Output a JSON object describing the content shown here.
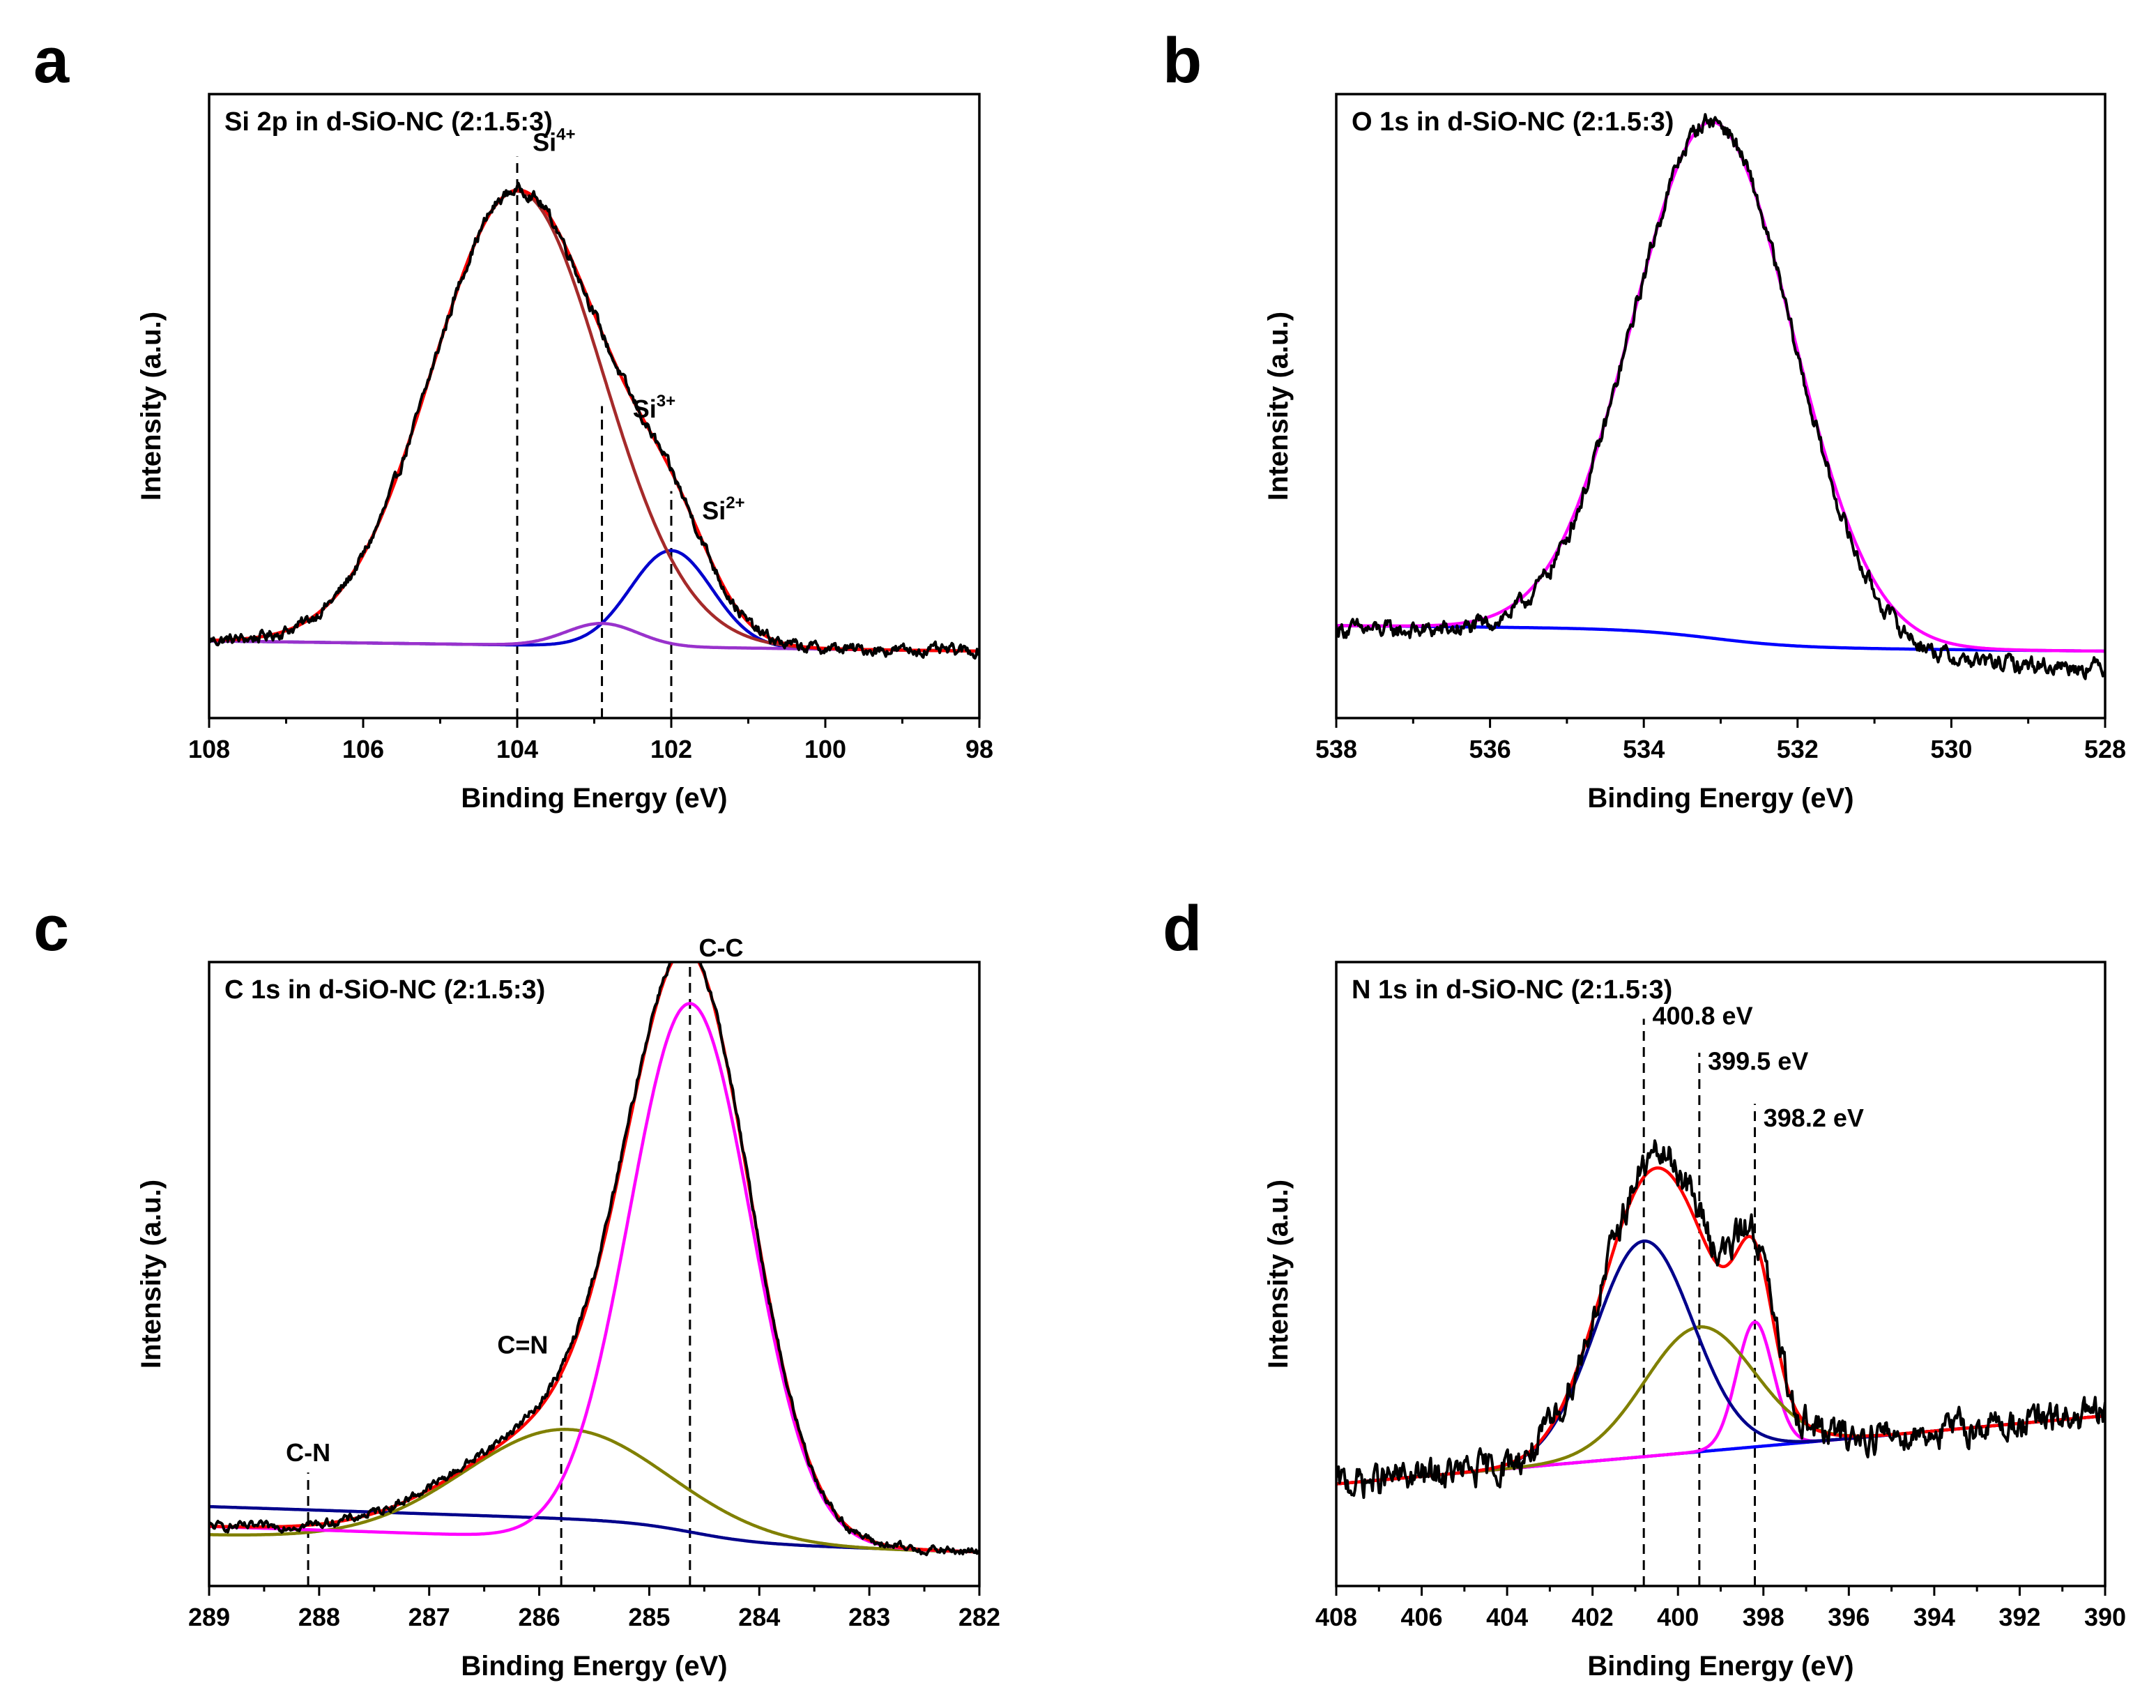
{
  "chart_data": [
    {
      "id": "a",
      "type": "line",
      "panel_label": "a",
      "title": "Si 2p in d-SiO-NC (2:1.5:3)",
      "xlabel": "Binding Energy (eV)",
      "ylabel": "Intensity (a.u.)",
      "xlim": [
        108,
        98
      ],
      "ylim": [
        0,
        1.1
      ],
      "xticks": [
        108,
        106,
        104,
        102,
        100,
        98
      ],
      "grid": false,
      "series": [
        {
          "name": "experimental",
          "color": "#000000",
          "noise": 0.008,
          "background": {
            "type": "linear",
            "y0": 0.136,
            "y1": 0.118,
            "shirley": 0
          },
          "peaks": [
            {
              "center": 104.0,
              "height": 0.8,
              "fwhm": 2.6
            },
            {
              "center": 102.0,
              "height": 0.15,
              "fwhm": 1.25
            },
            {
              "center": 102.9,
              "height": 0.03,
              "fwhm": 1.1
            }
          ]
        },
        {
          "name": "envelope fit",
          "color": "#ff0000",
          "background": {
            "type": "linear",
            "y0": 0.136,
            "y1": 0.118,
            "shirley": 0
          },
          "peaks": [
            {
              "center": 104.0,
              "height": 0.8,
              "fwhm": 2.6
            },
            {
              "center": 102.0,
              "height": 0.15,
              "fwhm": 1.25
            },
            {
              "center": 102.9,
              "height": 0.03,
              "fwhm": 1.1
            }
          ]
        },
        {
          "name": "Si4+ component",
          "color": "#a52a2a",
          "background": {
            "type": "linear",
            "y0": 0.136,
            "y1": 0.118,
            "shirley": 0
          },
          "peaks": [
            {
              "center": 104.0,
              "height": 0.8,
              "fwhm": 2.6
            }
          ]
        },
        {
          "name": "Si3+ component",
          "color": "#9932cc",
          "background": {
            "type": "linear",
            "y0": 0.136,
            "y1": 0.118,
            "shirley": 0
          },
          "peaks": [
            {
              "center": 102.9,
              "height": 0.04,
              "fwhm": 1.1
            }
          ]
        },
        {
          "name": "Si2+ component",
          "color": "#0000cd",
          "background": {
            "type": "linear",
            "y0": 0.136,
            "y1": 0.118,
            "shirley": 0
          },
          "peaks": [
            {
              "center": 102.0,
              "height": 0.17,
              "fwhm": 1.25
            }
          ]
        }
      ],
      "reference_lines": [
        {
          "x": 104.0,
          "y_top": 0.99
        },
        {
          "x": 102.9,
          "y_top": 0.55
        },
        {
          "x": 102.0,
          "y_top": 0.4
        }
      ],
      "annotations": [
        {
          "text": "Si",
          "sup": "4+",
          "x": 103.8,
          "y": 1.0
        },
        {
          "text": "Si",
          "sup": "3+",
          "x": 102.5,
          "y": 0.53
        },
        {
          "text": "Si",
          "sup": "2+",
          "x": 101.6,
          "y": 0.35
        }
      ]
    },
    {
      "id": "b",
      "type": "line",
      "panel_label": "b",
      "title": "O 1s in d-SiO-NC (2:1.5:3)",
      "xlabel": "Binding Energy (eV)",
      "ylabel": "Intensity (a.u.)",
      "xlim": [
        538,
        528
      ],
      "ylim": [
        0,
        1.1
      ],
      "xticks": [
        538,
        536,
        534,
        532,
        530,
        528
      ],
      "grid": false,
      "series": [
        {
          "name": "experimental",
          "color": "#000000",
          "noise": 0.012,
          "background": {
            "type": "linear",
            "y0": 0.125,
            "y1": 0.09,
            "shirley": 0.032,
            "shirley_center": 533.1,
            "shirley_width": 1.1
          },
          "peaks": [
            {
              "center": 533.1,
              "height": 0.93,
              "fwhm": 2.45
            }
          ]
        },
        {
          "name": "fit",
          "color": "#ff00ff",
          "background": {
            "type": "linear",
            "y0": 0.131,
            "y1": 0.118,
            "shirley": 0.032,
            "shirley_center": 533.1,
            "shirley_width": 1.1
          },
          "peaks": [
            {
              "center": 533.1,
              "height": 0.91,
              "fwhm": 2.45
            }
          ]
        },
        {
          "name": "background",
          "color": "#0000ff",
          "background": {
            "type": "linear",
            "y0": 0.131,
            "y1": 0.118,
            "shirley": 0.032,
            "shirley_center": 533.1,
            "shirley_width": 1.1
          },
          "peaks": []
        }
      ],
      "reference_lines": [],
      "annotations": []
    },
    {
      "id": "c",
      "type": "line",
      "panel_label": "c",
      "title": "C 1s in d-SiO-NC (2:1.5:3)",
      "xlabel": "Binding Energy (eV)",
      "ylabel": "Intensity (a.u.)",
      "xlim": [
        289,
        282
      ],
      "ylim": [
        0,
        1.1
      ],
      "xticks": [
        289,
        288,
        287,
        286,
        285,
        284,
        283,
        282
      ],
      "grid": false,
      "series": [
        {
          "name": "experimental",
          "color": "#000000",
          "noise": 0.006,
          "background": {
            "type": "linear",
            "y0": 0.105,
            "y1": 0.06,
            "shirley": 0
          },
          "peaks": [
            {
              "center": 284.63,
              "height": 0.95,
              "fwhm": 1.3
            },
            {
              "center": 285.75,
              "height": 0.2,
              "fwhm": 2.2
            }
          ]
        },
        {
          "name": "envelope fit",
          "color": "#ff0000",
          "background": {
            "type": "linear",
            "y0": 0.105,
            "y1": 0.06,
            "shirley": 0
          },
          "peaks": [
            {
              "center": 284.63,
              "height": 0.95,
              "fwhm": 1.3
            },
            {
              "center": 285.75,
              "height": 0.19,
              "fwhm": 2.2
            }
          ]
        },
        {
          "name": "C-C component",
          "color": "#ff00ff",
          "background": {
            "type": "linear",
            "y0": 0.105,
            "y1": 0.06,
            "shirley": 0
          },
          "peaks": [
            {
              "center": 284.63,
              "height": 0.95,
              "fwhm": 1.3
            }
          ]
        },
        {
          "name": "C=N component",
          "color": "#808000",
          "background": {
            "type": "linear",
            "y0": 0.09,
            "y1": 0.06,
            "shirley": 0
          },
          "peaks": [
            {
              "center": 285.75,
              "height": 0.2,
              "fwhm": 2.2
            }
          ]
        },
        {
          "name": "background",
          "color": "#00008b",
          "background": {
            "type": "linear",
            "y0": 0.105,
            "y1": 0.06,
            "shirley": 0.035,
            "shirley_center": 284.6,
            "shirley_width": 0.6
          },
          "peaks": []
        }
      ],
      "reference_lines": [
        {
          "x": 288.1,
          "y_top": 0.2
        },
        {
          "x": 285.8,
          "y_top": 0.38
        },
        {
          "x": 284.63,
          "y_top": 1.1
        }
      ],
      "annotations": [
        {
          "text": "C-N",
          "x": 288.1,
          "y": 0.22
        },
        {
          "text": "C=N",
          "x": 286.15,
          "y": 0.41
        },
        {
          "text": "C-C",
          "x": 284.55,
          "y": 1.11
        }
      ]
    },
    {
      "id": "d",
      "type": "line",
      "panel_label": "d",
      "title": "N 1s in d-SiO-NC (2:1.5:3)",
      "xlabel": "Binding Energy (eV)",
      "ylabel": "Intensity (a.u.)",
      "xlim": [
        408,
        390
      ],
      "ylim": [
        0,
        1.1
      ],
      "xticks": [
        408,
        406,
        404,
        402,
        400,
        398,
        396,
        394,
        392,
        390
      ],
      "grid": false,
      "series": [
        {
          "name": "experimental",
          "color": "#000000",
          "noise": 0.022,
          "background": {
            "type": "linear",
            "y0": 0.18,
            "y1": 0.3,
            "shirley": 0
          },
          "peaks": [
            {
              "center": 400.8,
              "height": 0.38,
              "fwhm": 2.7
            },
            {
              "center": 399.5,
              "height": 0.22,
              "fwhm": 3.0
            },
            {
              "center": 398.2,
              "height": 0.22,
              "fwhm": 1.0
            }
          ]
        },
        {
          "name": "envelope fit",
          "color": "#ff0000",
          "background": {
            "type": "linear",
            "y0": 0.18,
            "y1": 0.3,
            "shirley": 0
          },
          "peaks": [
            {
              "center": 400.8,
              "height": 0.38,
              "fwhm": 2.7
            },
            {
              "center": 399.5,
              "height": 0.19,
              "fwhm": 3.0
            },
            {
              "center": 398.2,
              "height": 0.22,
              "fwhm": 1.0
            }
          ]
        },
        {
          "name": "400.8 eV component",
          "color": "#00008b",
          "background": {
            "type": "linear",
            "y0": 0.18,
            "y1": 0.3,
            "shirley": 0
          },
          "peaks": [
            {
              "center": 400.8,
              "height": 0.38,
              "fwhm": 2.7
            }
          ]
        },
        {
          "name": "399.5 eV component",
          "color": "#808000",
          "background": {
            "type": "linear",
            "y0": 0.18,
            "y1": 0.3,
            "shirley": 0
          },
          "peaks": [
            {
              "center": 399.5,
              "height": 0.22,
              "fwhm": 3.0
            }
          ]
        },
        {
          "name": "398.2 eV component",
          "color": "#ff00ff",
          "background": {
            "type": "linear",
            "y0": 0.18,
            "y1": 0.3,
            "shirley": 0
          },
          "peaks": [
            {
              "center": 398.2,
              "height": 0.22,
              "fwhm": 1.0
            }
          ]
        },
        {
          "name": "background",
          "color": "#0000ff",
          "background": {
            "type": "linear",
            "y0": 0.18,
            "y1": 0.3,
            "shirley": 0
          },
          "peaks": []
        }
      ],
      "reference_lines": [
        {
          "x": 400.8,
          "y_top": 1.0
        },
        {
          "x": 399.5,
          "y_top": 0.94
        },
        {
          "x": 398.2,
          "y_top": 0.85
        }
      ],
      "annotations": [
        {
          "text": "400.8 eV",
          "x": 400.6,
          "y": 0.99
        },
        {
          "text": "399.5 eV",
          "x": 399.3,
          "y": 0.91
        },
        {
          "text": "398.2 eV",
          "x": 398.0,
          "y": 0.81
        }
      ]
    }
  ]
}
